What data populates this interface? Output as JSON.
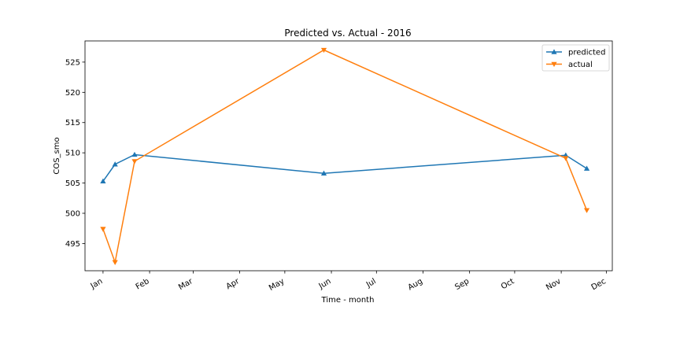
{
  "chart_data": {
    "type": "line",
    "title": "Predicted vs. Actual - 2016",
    "xlabel": "Time - month",
    "ylabel": "COS_smo",
    "x_ticks": [
      "Jan",
      "Feb",
      "Mar",
      "Apr",
      "May",
      "Jun",
      "Jul",
      "Aug",
      "Sep",
      "Oct",
      "Nov",
      "Dec"
    ],
    "y_ticks": [
      495,
      500,
      505,
      510,
      515,
      520,
      525
    ],
    "ylim": [
      490.5,
      528.5
    ],
    "xlim": [
      "2015-12-20",
      "2016-12-05"
    ],
    "grid": false,
    "legend_position": "top-right",
    "x": [
      "2016-01-01",
      "2016-01-09",
      "2016-01-22",
      "2016-05-27",
      "2016-11-04",
      "2016-11-18"
    ],
    "series": [
      {
        "name": "predicted",
        "color": "#1f77b4",
        "marker": "triangle-up",
        "values": [
          505.3,
          508.1,
          509.7,
          506.6,
          509.6,
          507.4
        ]
      },
      {
        "name": "actual",
        "color": "#ff7f0e",
        "marker": "triangle-down",
        "values": [
          497.4,
          491.9,
          508.6,
          527.0,
          509.1,
          500.5
        ]
      }
    ]
  }
}
